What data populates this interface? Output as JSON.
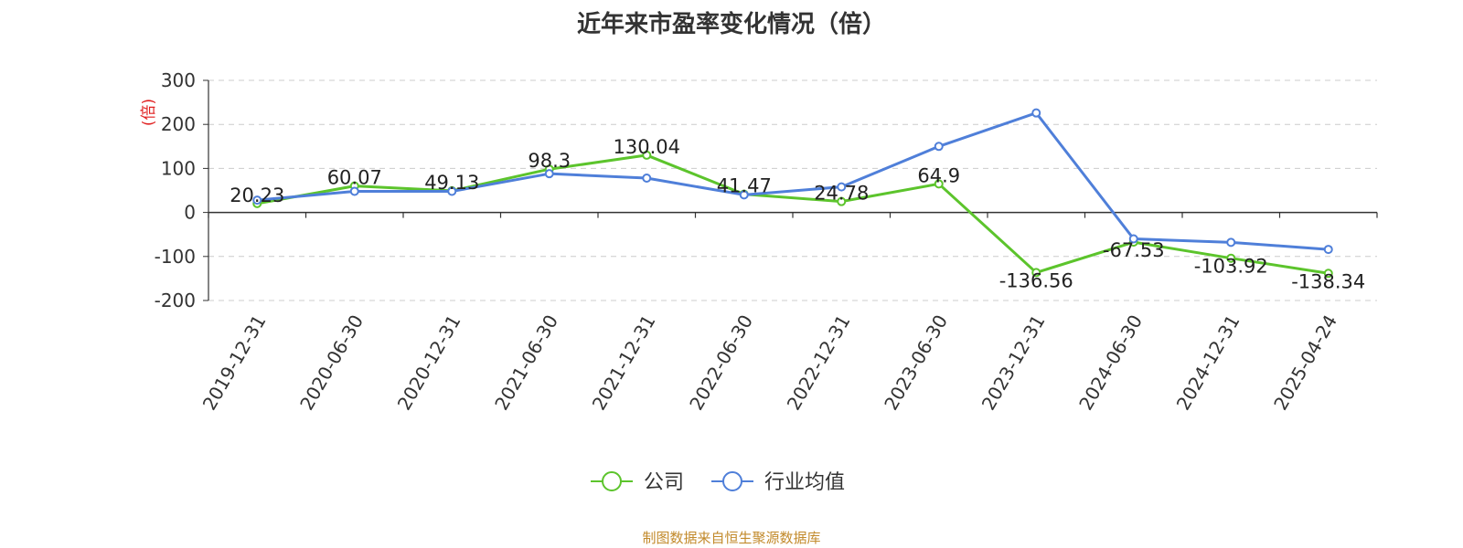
{
  "chart_data": {
    "type": "line",
    "title": "近年来市盈率变化情况（倍）",
    "ylabel": "(倍)",
    "xlabel": "",
    "ylim": [
      -200,
      300
    ],
    "yticks": [
      300,
      200,
      100,
      0,
      -100,
      -200
    ],
    "grid": true,
    "legend_position": "bottom-center",
    "categories": [
      "2019-12-31",
      "2020-06-30",
      "2020-12-31",
      "2021-06-30",
      "2021-12-31",
      "2022-06-30",
      "2022-12-31",
      "2023-06-30",
      "2023-12-31",
      "2024-06-30",
      "2024-12-31",
      "2025-04-24"
    ],
    "series": [
      {
        "name": "公司",
        "color": "#5cc42c",
        "values": [
          20.23,
          60.07,
          49.13,
          98.3,
          130.04,
          41.47,
          24.78,
          64.9,
          -136.56,
          -67.53,
          -103.92,
          -138.34
        ],
        "labels": [
          "20.23",
          "60.07",
          "49.13",
          "98.3",
          "130.04",
          "41.47",
          "24.78",
          "64.9",
          "-136.56",
          "-67.53",
          "-103.92",
          "-138.34"
        ]
      },
      {
        "name": "行业均值",
        "color": "#4f7fd9",
        "values": [
          28,
          48,
          48,
          88,
          78,
          40,
          58,
          150,
          226,
          -60,
          -68,
          -84
        ]
      }
    ]
  },
  "source_note": "制图数据来自恒生聚源数据库"
}
